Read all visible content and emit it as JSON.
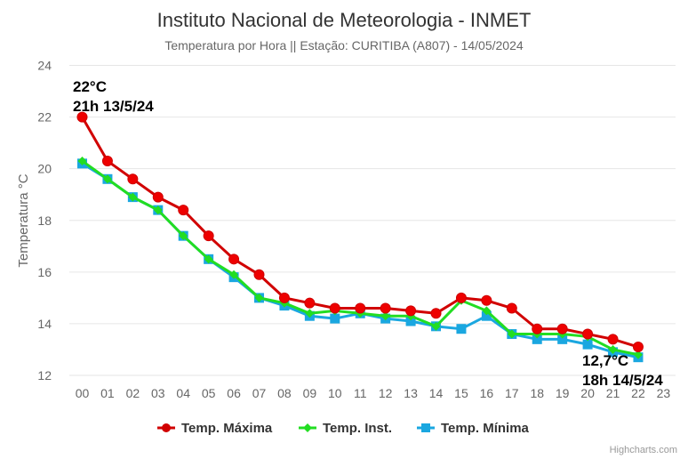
{
  "chart_data": {
    "type": "line",
    "title": "Instituto Nacional de Meteorologia - INMET",
    "subtitle": "Temperatura por Hora || Estação: CURITIBA (A807) - 14/05/2024",
    "xlabel": "",
    "ylabel": "Temperatura °C",
    "ylim": [
      12,
      24
    ],
    "yticks": [
      "12",
      "14",
      "16",
      "18",
      "20",
      "22",
      "24"
    ],
    "grid": true,
    "legend_position": "bottom",
    "categories": [
      "00",
      "01",
      "02",
      "03",
      "04",
      "05",
      "06",
      "07",
      "08",
      "09",
      "10",
      "11",
      "12",
      "13",
      "14",
      "15",
      "16",
      "17",
      "18",
      "19",
      "20",
      "21",
      "22",
      "23"
    ],
    "series": [
      {
        "name": "Temp. Máxima",
        "color": "#d10000",
        "marker": "circle",
        "values": [
          22.0,
          20.3,
          19.6,
          18.9,
          18.4,
          17.4,
          16.5,
          15.9,
          15.0,
          14.8,
          14.6,
          14.6,
          14.6,
          14.5,
          14.4,
          15.0,
          14.9,
          14.6,
          13.8,
          13.8,
          13.6,
          13.4,
          13.1,
          null
        ]
      },
      {
        "name": "Temp. Inst.",
        "color": "#22dd22",
        "marker": "diamond",
        "values": [
          20.3,
          19.6,
          18.9,
          18.4,
          17.4,
          16.5,
          15.9,
          15.0,
          14.8,
          14.4,
          14.5,
          14.4,
          14.3,
          14.3,
          13.9,
          14.9,
          14.5,
          13.6,
          13.6,
          13.6,
          13.5,
          13.0,
          12.8,
          null
        ]
      },
      {
        "name": "Temp. Mínima",
        "color": "#1aa7e0",
        "marker": "square",
        "values": [
          20.2,
          19.6,
          18.9,
          18.4,
          17.4,
          16.5,
          15.8,
          15.0,
          14.7,
          14.3,
          14.2,
          14.4,
          14.2,
          14.1,
          13.9,
          13.8,
          14.3,
          13.6,
          13.4,
          13.4,
          13.2,
          12.9,
          12.7,
          null
        ]
      }
    ],
    "annotations": [
      {
        "lines": [
          "22°C",
          "21h 13/5/24"
        ],
        "anchor": "max",
        "series_index": 0,
        "category_index": 0
      },
      {
        "lines": [
          "12,7°C",
          "18h 14/5/24"
        ],
        "anchor": "min",
        "series_index": 2,
        "category_index": 22
      }
    ],
    "credits": "Highcharts.com"
  }
}
